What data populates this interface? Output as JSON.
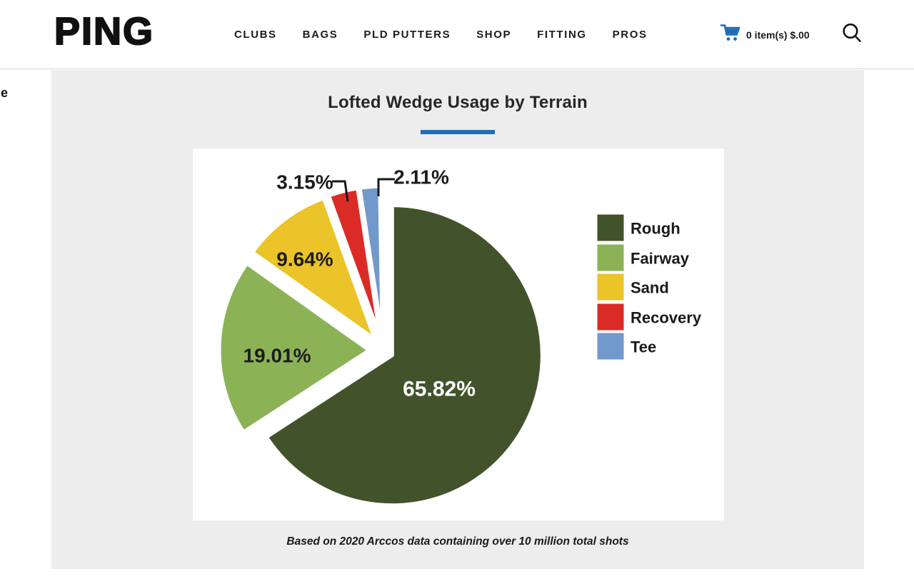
{
  "header": {
    "logo": "PING",
    "nav_items": [
      "CLUBS",
      "BAGS",
      "PLD PUTTERS",
      "SHOP",
      "FITTING",
      "PROS"
    ],
    "cart": {
      "label": "0 item(s) $.00",
      "icon_color": "#1b6cb5"
    },
    "text_color": "#1b1b1b"
  },
  "page": {
    "left_edge_fragment": "e",
    "panel_background": "#ededed",
    "card_background": "#ffffff"
  },
  "chart_data": {
    "type": "pie",
    "title": "Lofted Wedge Usage by Terrain",
    "title_accent_color": "#1e6fb5",
    "categories": [
      "Rough",
      "Fairway",
      "Sand",
      "Recovery",
      "Tee"
    ],
    "values": [
      65.82,
      19.01,
      9.64,
      3.15,
      2.11
    ],
    "slice_labels": [
      "65.82%",
      "19.01%",
      "9.64%",
      "3.15%",
      "2.11%"
    ],
    "colors": [
      "#42532B",
      "#8BB356",
      "#EAC428",
      "#DB2B26",
      "#7299CC"
    ],
    "label_text_color": "#1c1c1c",
    "large_slice_label_color": "#ffffff",
    "legend_position": "right",
    "legend_text_color": "#1a1a1a",
    "note": "Based on 2020 Arccos data containing over 10 million total shots"
  }
}
